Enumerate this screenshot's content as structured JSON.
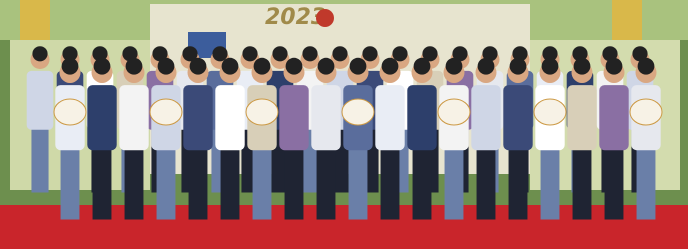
{
  "backdrop": {
    "year": "2023"
  }
}
